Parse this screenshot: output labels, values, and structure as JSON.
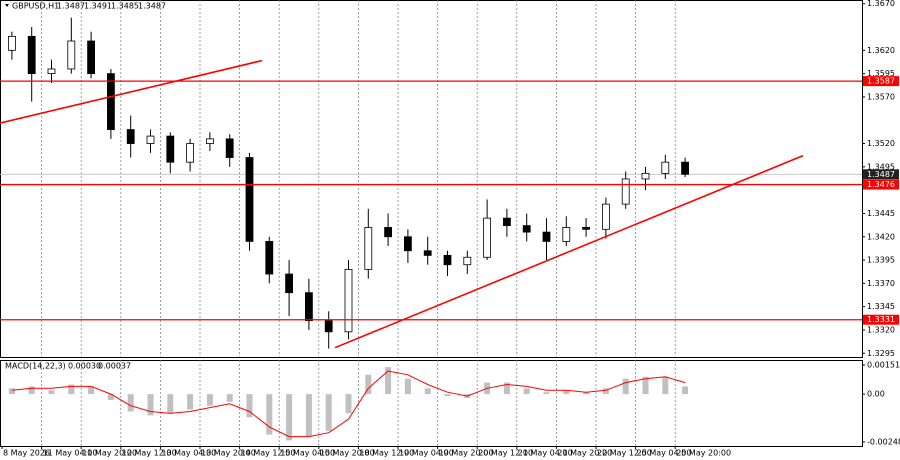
{
  "chart_data": {
    "type": "candlestick",
    "symbol": "GBPUSD,H1",
    "header_ohlc": [
      1.3487,
      1.3491,
      1.3485,
      1.3487
    ],
    "categories": [
      "8 May 2026",
      null,
      "11 May 04:00",
      null,
      "11 May 20:00",
      null,
      "12 May 12:00",
      null,
      "13 May 04:00",
      null,
      "13 May 20:00",
      null,
      "14 May 12:00",
      null,
      "15 May 04:00",
      null,
      "15 May 20:00",
      null,
      "18 May 12:00",
      null,
      "19 May 04:00",
      null,
      "19 May 20:00",
      null,
      "20 May 12:00",
      null,
      "21 May 04:00",
      null,
      "21 May 20:00",
      null,
      "22 May 12:00",
      null,
      "25 May 04:00",
      null,
      "25 May 20:00"
    ],
    "open": [
      1.362,
      1.3635,
      1.3595,
      1.36,
      1.363,
      1.3595,
      1.3535,
      1.352,
      1.3528,
      1.35,
      1.352,
      1.3525,
      1.3505,
      1.3415,
      1.338,
      1.336,
      1.333,
      1.3318,
      1.3385,
      1.343,
      1.342,
      1.3405,
      1.34,
      1.339,
      1.3398,
      1.344,
      1.3432,
      1.3425,
      1.3415,
      1.343,
      1.3428,
      1.3455,
      1.3482,
      1.3488,
      1.35
    ],
    "high": [
      1.364,
      1.3645,
      1.361,
      1.3655,
      1.364,
      1.36,
      1.355,
      1.3535,
      1.3532,
      1.3525,
      1.3532,
      1.353,
      1.351,
      1.342,
      1.3395,
      1.3375,
      1.334,
      1.3395,
      1.345,
      1.3445,
      1.3428,
      1.342,
      1.3405,
      1.3405,
      1.346,
      1.345,
      1.3445,
      1.344,
      1.3442,
      1.344,
      1.3462,
      1.349,
      1.3495,
      1.3508,
      1.3505
    ],
    "low": [
      1.361,
      1.3565,
      1.3585,
      1.3595,
      1.359,
      1.3525,
      1.3505,
      1.351,
      1.3488,
      1.349,
      1.3512,
      1.3495,
      1.3405,
      1.337,
      1.3335,
      1.332,
      1.33,
      1.331,
      1.3375,
      1.341,
      1.3392,
      1.339,
      1.3378,
      1.338,
      1.3395,
      1.342,
      1.3415,
      1.3395,
      1.341,
      1.342,
      1.3418,
      1.345,
      1.347,
      1.3482,
      1.3484
    ],
    "close": [
      1.3635,
      1.3595,
      1.36,
      1.363,
      1.3595,
      1.3535,
      1.352,
      1.3528,
      1.35,
      1.352,
      1.3525,
      1.3505,
      1.3415,
      1.338,
      1.336,
      1.333,
      1.3318,
      1.3385,
      1.343,
      1.342,
      1.3405,
      1.34,
      1.339,
      1.3398,
      1.344,
      1.3432,
      1.3425,
      1.3415,
      1.343,
      1.3428,
      1.3455,
      1.3482,
      1.3488,
      1.35,
      1.3487
    ],
    "ylim": [
      1.3291,
      1.3674
    ],
    "yticks": [
      {
        "value": 1.367,
        "label": "1.3670"
      },
      {
        "value": 1.362,
        "label": "1.3620"
      },
      1.3595,
      {
        "value": 1.357,
        "label": "1.3570"
      },
      {
        "value": 1.352,
        "label": "1.3520"
      },
      1.3495,
      1.3445,
      {
        "value": 1.342,
        "label": "1.3420"
      },
      1.3395,
      {
        "value": 1.337,
        "label": "1.3370"
      },
      1.3345,
      {
        "value": 1.332,
        "label": "1.3320"
      },
      1.3295
    ],
    "levels": [
      1.3587,
      1.3476,
      1.3331
    ],
    "level_color": "#ff0000",
    "current_price": 1.3487,
    "trendlines": [
      {
        "start": 1.3542,
        "end": 1.3609
      },
      {
        "start": 1.3301,
        "end": 1.3507
      }
    ],
    "grid": true,
    "macd": {
      "title": "MACD(14,22,3)",
      "readout": [
        {
          "value": 0.0003,
          "label": "0.00030"
        },
        {
          "value": 0.00037,
          "label": "0.00037"
        }
      ],
      "values": [
        0.0003,
        0.0004,
        0.0002,
        0.0005,
        0.0004,
        -0.0003,
        -0.0009,
        -0.0011,
        -0.001,
        -0.0008,
        -0.0006,
        -0.0004,
        -0.0012,
        -0.0021,
        -0.0024,
        -0.0022,
        -0.0019,
        -0.001,
        0.001,
        0.0014,
        0.0008,
        0.0003,
        -0.0001,
        -0.0002,
        0.0006,
        0.0006,
        0.0003,
        0.0001,
        0.0002,
        0.0001,
        0.0003,
        0.0008,
        0.0009,
        0.0009,
        0.0004
      ],
      "signal": [
        0.0002,
        0.0003,
        0.0003,
        0.0004,
        0.0004,
        0.0,
        -0.0006,
        -0.0009,
        -0.001,
        -0.0009,
        -0.0007,
        -0.0005,
        -0.0009,
        -0.0017,
        -0.0022,
        -0.0022,
        -0.002,
        -0.0013,
        0.0003,
        0.0012,
        0.001,
        0.0005,
        0.0001,
        -0.0001,
        0.0003,
        0.0005,
        0.0004,
        0.0002,
        0.0002,
        0.0001,
        0.0002,
        0.0006,
        0.0008,
        0.0009,
        0.0006
      ],
      "color": "#c0c0c0",
      "signal_color": "#ff0000",
      "ylim": [
        -0.00269,
        0.00177
      ],
      "yticks": [
        0.00151,
        {
          "value": 0,
          "label": "0.00"
        },
        -0.00248
      ]
    }
  }
}
